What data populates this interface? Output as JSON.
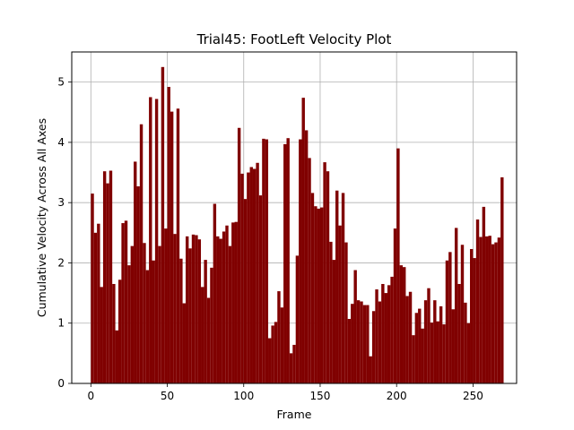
{
  "chart_data": {
    "type": "bar",
    "title": "Trial45: FootLeft Velocity Plot",
    "xlabel": "Frame",
    "ylabel": "Cumulative Velocity Across All Axes",
    "xlim": [
      -12.5,
      278.5
    ],
    "ylim": [
      0,
      5.5
    ],
    "xticks": [
      0,
      50,
      100,
      150,
      200,
      250
    ],
    "yticks": [
      0,
      1,
      2,
      3,
      4,
      5
    ],
    "grid": true,
    "bar_color": "#800000",
    "bar_width": 2,
    "x_start": 0,
    "x_step": 2,
    "values": [
      3.15,
      2.5,
      2.65,
      1.6,
      3.52,
      3.32,
      3.53,
      1.65,
      0.88,
      1.72,
      2.66,
      2.7,
      1.96,
      2.28,
      3.68,
      3.27,
      4.3,
      2.33,
      1.88,
      4.75,
      2.04,
      4.72,
      2.28,
      5.25,
      2.57,
      4.92,
      4.51,
      2.48,
      4.56,
      2.07,
      1.33,
      2.44,
      2.24,
      2.47,
      2.46,
      2.39,
      1.6,
      2.05,
      1.42,
      1.92,
      2.98,
      2.44,
      2.4,
      2.52,
      2.62,
      2.28,
      2.67,
      2.68,
      4.24,
      3.48,
      3.06,
      3.5,
      3.59,
      3.56,
      3.66,
      3.12,
      4.06,
      4.05,
      0.75,
      0.96,
      1.02,
      1.53,
      1.26,
      3.97,
      4.07,
      0.5,
      0.64,
      2.12,
      4.05,
      4.74,
      4.2,
      3.74,
      3.16,
      2.94,
      2.9,
      2.92,
      3.67,
      3.52,
      2.35,
      2.05,
      3.2,
      2.62,
      3.16,
      2.34,
      1.07,
      1.32,
      1.88,
      1.38,
      1.36,
      1.3,
      1.3,
      0.45,
      1.2,
      1.56,
      1.36,
      1.65,
      1.5,
      1.63,
      1.77,
      2.57,
      3.9,
      1.96,
      1.93,
      1.45,
      1.52,
      0.8,
      1.17,
      1.24,
      0.91,
      1.38,
      1.58,
      1.01,
      1.38,
      1.03,
      1.28,
      0.98,
      2.04,
      2.18,
      1.23,
      2.58,
      1.65,
      2.3,
      1.34,
      1.0,
      2.23,
      2.08,
      2.72,
      2.43,
      2.93,
      2.44,
      2.45,
      2.31,
      2.34,
      2.42,
      3.42
    ]
  }
}
